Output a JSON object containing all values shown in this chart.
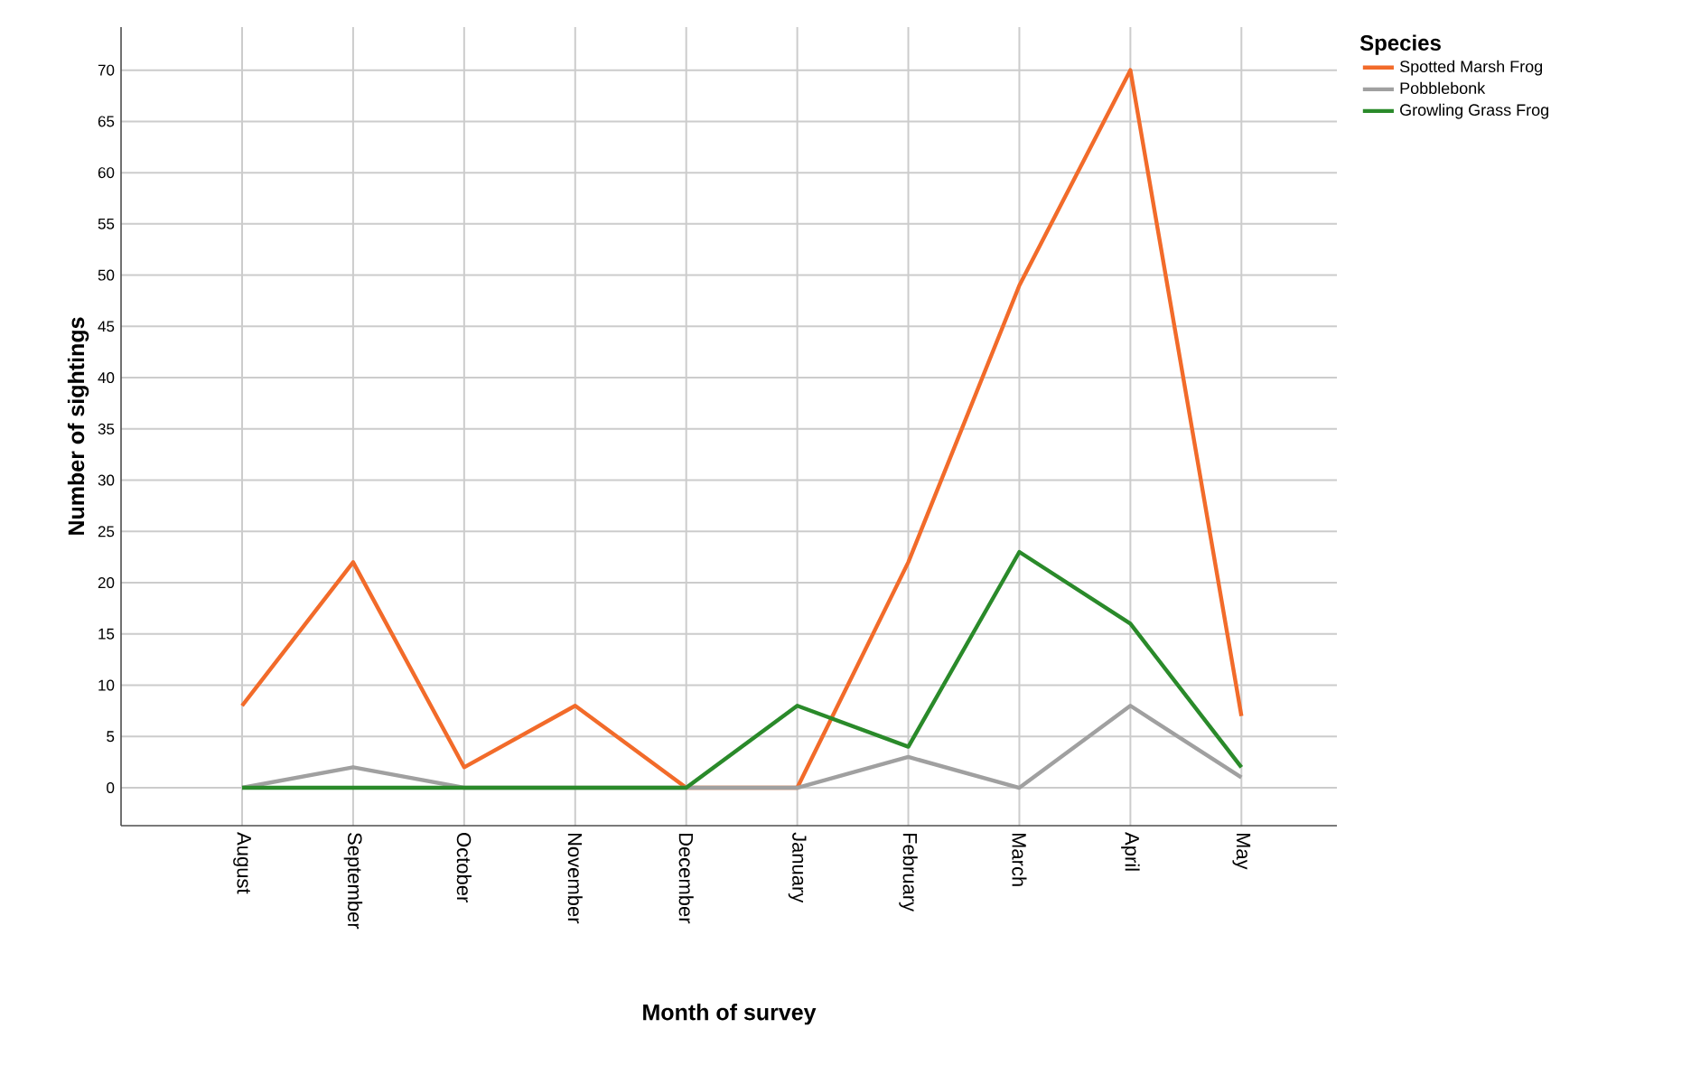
{
  "chart_data": {
    "type": "line",
    "xlabel": "Month of survey",
    "ylabel": "Number of sightings",
    "legend_title": "Species",
    "categories": [
      "August",
      "September",
      "October",
      "November",
      "December",
      "January",
      "February",
      "March",
      "April",
      "May"
    ],
    "series": [
      {
        "name": "Spotted Marsh Frog",
        "color": "#f26b2a",
        "values": [
          8,
          22,
          2,
          8,
          0,
          0,
          22,
          49,
          70,
          7
        ]
      },
      {
        "name": "Pobblebonk",
        "color": "#a0a0a0",
        "values": [
          0,
          2,
          0,
          0,
          0,
          0,
          3,
          0,
          8,
          1
        ]
      },
      {
        "name": "Growling Grass Frog",
        "color": "#2a8a2a",
        "values": [
          0,
          0,
          0,
          0,
          0,
          8,
          4,
          23,
          16,
          2
        ]
      }
    ],
    "ylim": [
      -3.7,
      74.2
    ],
    "yticks": [
      0,
      5,
      10,
      15,
      20,
      25,
      30,
      35,
      40,
      45,
      50,
      55,
      60,
      65,
      70
    ],
    "grid": true,
    "legend": "top right",
    "marker": "none",
    "line_style": "solid"
  }
}
